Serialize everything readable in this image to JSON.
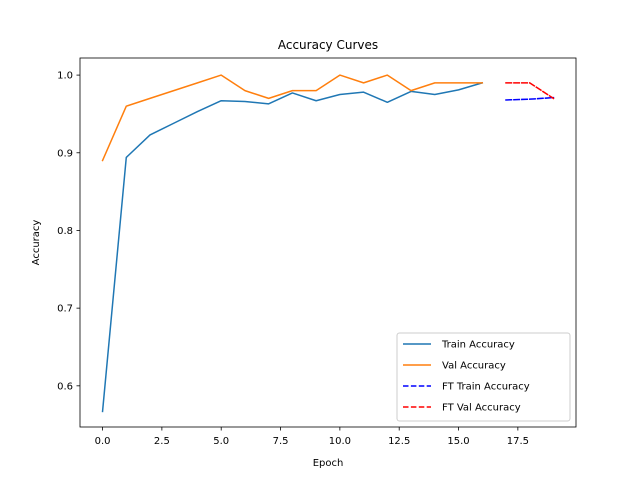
{
  "chart_data": {
    "type": "line",
    "title": "Accuracy Curves",
    "xlabel": "Epoch",
    "ylabel": "Accuracy",
    "xlim": [
      -0.95,
      19.95
    ],
    "ylim": [
      0.547,
      1.022
    ],
    "xticks": [
      0.0,
      2.5,
      5.0,
      7.5,
      10.0,
      12.5,
      15.0,
      17.5
    ],
    "xtick_labels": [
      "0.0",
      "2.5",
      "5.0",
      "7.5",
      "10.0",
      "12.5",
      "15.0",
      "17.5"
    ],
    "yticks": [
      0.6,
      0.7,
      0.8,
      0.9,
      1.0
    ],
    "ytick_labels": [
      "0.6",
      "0.7",
      "0.8",
      "0.9",
      "1.0"
    ],
    "grid": false,
    "legend_position": "lower-right",
    "series": [
      {
        "name": "Train Accuracy",
        "color": "#1f77b4",
        "style": "solid",
        "x": [
          0,
          1,
          2,
          3,
          4,
          5,
          6,
          7,
          8,
          9,
          10,
          11,
          12,
          13,
          14,
          15,
          16
        ],
        "y": [
          0.567,
          0.894,
          0.923,
          0.938,
          0.953,
          0.967,
          0.966,
          0.963,
          0.977,
          0.967,
          0.975,
          0.978,
          0.965,
          0.979,
          0.975,
          0.981,
          0.99
        ]
      },
      {
        "name": "Val Accuracy",
        "color": "#ff7f0e",
        "style": "solid",
        "x": [
          0,
          1,
          2,
          3,
          4,
          5,
          6,
          7,
          8,
          9,
          10,
          11,
          12,
          13,
          14,
          15,
          16
        ],
        "y": [
          0.89,
          0.96,
          0.97,
          0.98,
          0.99,
          1.0,
          0.98,
          0.97,
          0.98,
          0.98,
          1.0,
          0.99,
          1.0,
          0.98,
          0.99,
          0.99,
          0.99
        ]
      },
      {
        "name": "FT Train Accuracy",
        "color": "#0000ff",
        "style": "dashed",
        "x": [
          17,
          18,
          19
        ],
        "y": [
          0.968,
          0.969,
          0.971
        ]
      },
      {
        "name": "FT Val Accuracy",
        "color": "#ff0000",
        "style": "dashed",
        "x": [
          17,
          18,
          19
        ],
        "y": [
          0.99,
          0.99,
          0.97
        ]
      }
    ]
  }
}
